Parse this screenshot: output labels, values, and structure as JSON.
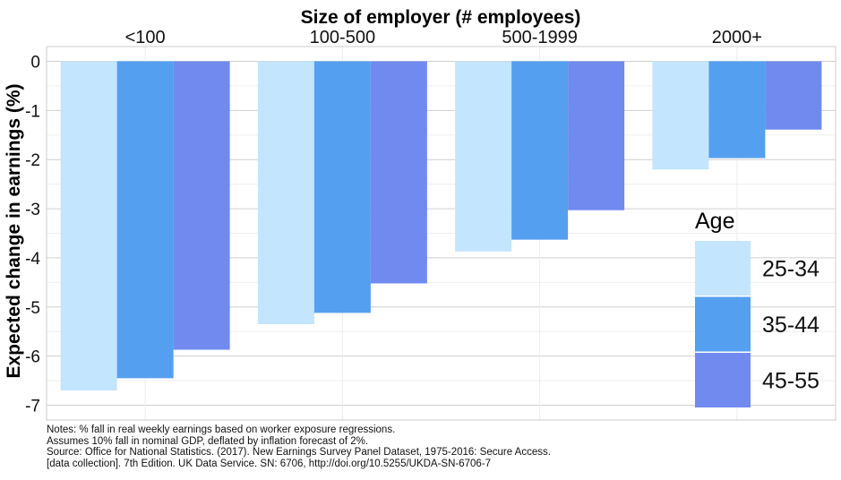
{
  "chart_data": {
    "type": "bar",
    "title": "Size of employer (# employees)",
    "ylabel": "Expected change in earnings (%)",
    "categories": [
      "<100",
      "100-500",
      "500-1999",
      "2000+"
    ],
    "series": [
      {
        "name": "25-34",
        "color": "#c3e5fd",
        "values": [
          -6.7,
          -5.35,
          -3.87,
          -2.2
        ]
      },
      {
        "name": "35-44",
        "color": "#559ff0",
        "values": [
          -6.45,
          -5.12,
          -3.63,
          -1.97
        ]
      },
      {
        "name": "45-55",
        "color": "#708af0",
        "values": [
          -5.87,
          -4.52,
          -3.03,
          -1.39
        ]
      }
    ],
    "ylim": [
      -7.3,
      0.3
    ],
    "yticks": [
      "0",
      "-1",
      "-2",
      "-3",
      "-4",
      "-5",
      "-6",
      "-7"
    ],
    "ytick_values": [
      0,
      -1,
      -2,
      -3,
      -4,
      -5,
      -6,
      -7
    ],
    "grid": true,
    "legend": {
      "title": "Age",
      "placement": "bottom-right inside"
    }
  },
  "notes": [
    "Notes: % fall in real weekly earnings based on worker exposure regressions.",
    "Assumes 10% fall in nominal GDP, deflated by inflation forecast of 2%.",
    "Source: Office for National Statistics. (2017). New Earnings Survey Panel Dataset, 1975-2016: Secure Access.",
    "[data collection]. 7th Edition. UK Data Service. SN: 6706, http://doi.org/10.5255/UKDA-SN-6706-7"
  ]
}
